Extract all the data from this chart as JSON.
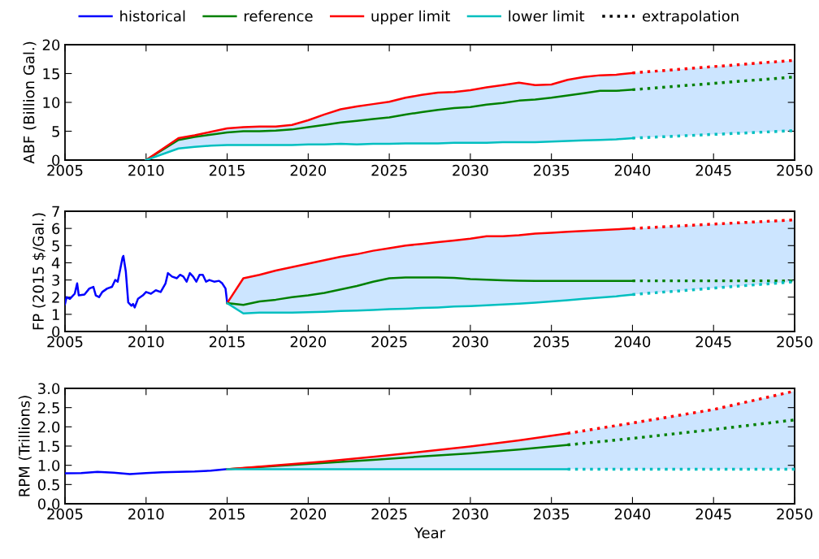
{
  "chart_data": [
    {
      "type": "line",
      "ylabel": "ABF (Billion Gal.)",
      "xlim": [
        2005,
        2050
      ],
      "xticks": [
        2005,
        2010,
        2015,
        2020,
        2025,
        2030,
        2035,
        2040,
        2045,
        2050
      ],
      "ylim": [
        0,
        20
      ],
      "yticks": [
        0,
        5,
        10,
        15,
        20
      ],
      "grid": false,
      "legend": false,
      "line_style": "solid",
      "marker": "none",
      "series": [
        {
          "color": "#008000",
          "x": [
            2010,
            2012,
            2013,
            2014,
            2015,
            2016,
            2017,
            2018,
            2019,
            2020,
            2021,
            2022,
            2023,
            2024,
            2025,
            2026,
            2027,
            2028,
            2029,
            2030,
            2031,
            2032,
            2033,
            2034,
            2035,
            2036,
            2037,
            2038,
            2039,
            2040,
            2050
          ],
          "values": [
            0,
            3.5,
            4.0,
            4.4,
            4.8,
            5.0,
            5.0,
            5.1,
            5.3,
            5.7,
            6.1,
            6.5,
            6.8,
            7.1,
            7.4,
            7.9,
            8.3,
            8.7,
            9.0,
            9.2,
            9.6,
            9.9,
            10.3,
            10.5,
            10.8,
            11.2,
            11.6,
            12.0,
            12.0,
            12.2,
            null
          ],
          "lower": [
            0,
            2.0,
            2.3,
            2.5,
            2.6,
            2.6,
            2.6,
            2.6,
            2.6,
            2.7,
            2.7,
            2.8,
            2.7,
            2.8,
            2.8,
            2.9,
            2.9,
            2.9,
            3.0,
            3.0,
            3.0,
            3.1,
            3.1,
            3.1,
            3.2,
            3.3,
            3.4,
            3.5,
            3.6,
            3.8,
            5.1
          ],
          "upper": [
            0,
            3.8,
            4.3,
            4.9,
            5.5,
            5.7,
            5.8,
            5.8,
            6.1,
            6.9,
            7.9,
            8.8,
            9.3,
            9.7,
            10.1,
            10.8,
            11.3,
            11.7,
            11.8,
            12.1,
            12.6,
            13.0,
            13.4,
            13.0,
            13.1,
            13.9,
            14.4,
            14.7,
            14.8,
            15.1,
            17.3
          ]
        },
        {
          "color": "#ff0000",
          "x": [
            2010,
            2012,
            2013,
            2014,
            2015,
            2016,
            2017,
            2018,
            2019,
            2020,
            2021,
            2022,
            2023,
            2024,
            2025,
            2026,
            2027,
            2028,
            2029,
            2030,
            2031,
            2032,
            2033,
            2034,
            2035,
            2036,
            2037,
            2038,
            2039,
            2040
          ],
          "values": [
            0,
            3.8,
            4.3,
            4.9,
            5.5,
            5.7,
            5.8,
            5.8,
            6.1,
            6.9,
            7.9,
            8.8,
            9.3,
            9.7,
            10.1,
            10.8,
            11.3,
            11.7,
            11.8,
            12.1,
            12.6,
            13.0,
            13.4,
            13.0,
            13.1,
            13.9,
            14.4,
            14.7,
            14.8,
            15.1
          ]
        },
        {
          "color": "#00bfbf",
          "x": [
            2010,
            2012,
            2013,
            2014,
            2015,
            2016,
            2017,
            2018,
            2019,
            2020,
            2021,
            2022,
            2023,
            2024,
            2025,
            2026,
            2027,
            2028,
            2029,
            2030,
            2031,
            2032,
            2033,
            2034,
            2035,
            2036,
            2037,
            2038,
            2039,
            2040
          ],
          "values": [
            0,
            2.0,
            2.3,
            2.5,
            2.6,
            2.6,
            2.6,
            2.6,
            2.6,
            2.7,
            2.7,
            2.8,
            2.7,
            2.8,
            2.8,
            2.9,
            2.9,
            2.9,
            3.0,
            3.0,
            3.0,
            3.1,
            3.1,
            3.1,
            3.2,
            3.3,
            3.4,
            3.5,
            3.6,
            3.8
          ]
        },
        {
          "color": "#ff0000",
          "line_style": "dotted",
          "x": [
            2040,
            2050
          ],
          "values": [
            15.1,
            17.3
          ]
        },
        {
          "color": "#008000",
          "line_style": "dotted",
          "x": [
            2040,
            2050
          ],
          "values": [
            12.2,
            14.4
          ]
        },
        {
          "color": "#00bfbf",
          "line_style": "dotted",
          "x": [
            2040,
            2050
          ],
          "values": [
            3.8,
            5.1
          ]
        }
      ]
    },
    {
      "type": "line",
      "ylabel": "FP (2015 $/Gal.)",
      "xlim": [
        2005,
        2050
      ],
      "xticks": [
        2005,
        2010,
        2015,
        2020,
        2025,
        2030,
        2035,
        2040,
        2045,
        2050
      ],
      "ylim": [
        0,
        7
      ],
      "yticks": [
        0,
        1,
        2,
        3,
        4,
        5,
        6,
        7
      ],
      "grid": false,
      "legend": "top",
      "line_style": "solid",
      "marker": "none",
      "series": [
        {
          "name": "historical",
          "color": "#0000ff",
          "x": [
            2005.0,
            2005.1,
            2005.3,
            2005.6,
            2005.75,
            2005.85,
            2006.2,
            2006.5,
            2006.75,
            2006.9,
            2007.1,
            2007.3,
            2007.6,
            2007.9,
            2008.1,
            2008.25,
            2008.4,
            2008.55,
            2008.6,
            2008.75,
            2008.9,
            2009.1,
            2009.2,
            2009.3,
            2009.5,
            2009.8,
            2010.0,
            2010.3,
            2010.6,
            2010.9,
            2011.2,
            2011.35,
            2011.6,
            2011.9,
            2012.1,
            2012.3,
            2012.5,
            2012.7,
            2012.9,
            2013.1,
            2013.3,
            2013.5,
            2013.7,
            2013.9,
            2014.2,
            2014.5,
            2014.7,
            2014.9,
            2015.0
          ],
          "values": [
            1.6,
            2.0,
            1.9,
            2.2,
            2.8,
            2.1,
            2.15,
            2.5,
            2.6,
            2.1,
            2.0,
            2.3,
            2.5,
            2.6,
            3.0,
            2.9,
            3.6,
            4.3,
            4.4,
            3.5,
            1.7,
            1.5,
            1.6,
            1.4,
            1.9,
            2.1,
            2.3,
            2.2,
            2.4,
            2.3,
            2.8,
            3.4,
            3.2,
            3.1,
            3.3,
            3.2,
            2.9,
            3.4,
            3.2,
            2.9,
            3.3,
            3.3,
            2.9,
            3.0,
            2.9,
            2.95,
            2.8,
            2.5,
            1.7
          ]
        },
        {
          "name": "reference",
          "color": "#008000",
          "x": [
            2015,
            2016,
            2017,
            2018,
            2019,
            2020,
            2021,
            2022,
            2023,
            2024,
            2025,
            2026,
            2027,
            2028,
            2029,
            2030,
            2031,
            2032,
            2033,
            2034,
            2035,
            2036,
            2037,
            2038,
            2039,
            2040,
            2050
          ],
          "values": [
            1.65,
            1.55,
            1.75,
            1.85,
            2.0,
            2.1,
            2.25,
            2.45,
            2.65,
            2.9,
            3.1,
            3.15,
            3.15,
            3.15,
            3.12,
            3.05,
            3.02,
            2.98,
            2.96,
            2.95,
            2.95,
            2.95,
            2.95,
            2.95,
            2.95,
            2.95,
            null
          ],
          "lower": [
            1.65,
            1.05,
            1.1,
            1.1,
            1.1,
            1.12,
            1.15,
            1.2,
            1.22,
            1.25,
            1.3,
            1.33,
            1.37,
            1.4,
            1.45,
            1.48,
            1.52,
            1.57,
            1.62,
            1.68,
            1.75,
            1.82,
            1.9,
            1.98,
            2.05,
            2.15,
            2.9
          ],
          "upper": [
            1.65,
            3.1,
            3.3,
            3.55,
            3.75,
            3.95,
            4.15,
            4.35,
            4.5,
            4.7,
            4.85,
            5.0,
            5.1,
            5.2,
            5.3,
            5.4,
            5.55,
            5.55,
            5.6,
            5.7,
            5.75,
            5.8,
            5.85,
            5.9,
            5.95,
            6.0,
            6.5
          ]
        },
        {
          "name": "upper limit",
          "color": "#ff0000",
          "x": [
            2015,
            2016,
            2017,
            2018,
            2019,
            2020,
            2021,
            2022,
            2023,
            2024,
            2025,
            2026,
            2027,
            2028,
            2029,
            2030,
            2031,
            2032,
            2033,
            2034,
            2035,
            2036,
            2037,
            2038,
            2039,
            2040
          ],
          "values": [
            1.65,
            3.1,
            3.3,
            3.55,
            3.75,
            3.95,
            4.15,
            4.35,
            4.5,
            4.7,
            4.85,
            5.0,
            5.1,
            5.2,
            5.3,
            5.4,
            5.55,
            5.55,
            5.6,
            5.7,
            5.75,
            5.8,
            5.85,
            5.9,
            5.95,
            6.0
          ]
        },
        {
          "name": "lower limit",
          "color": "#00bfbf",
          "x": [
            2015,
            2016,
            2017,
            2018,
            2019,
            2020,
            2021,
            2022,
            2023,
            2024,
            2025,
            2026,
            2027,
            2028,
            2029,
            2030,
            2031,
            2032,
            2033,
            2034,
            2035,
            2036,
            2037,
            2038,
            2039,
            2040
          ],
          "values": [
            1.65,
            1.05,
            1.1,
            1.1,
            1.1,
            1.12,
            1.15,
            1.2,
            1.22,
            1.25,
            1.3,
            1.33,
            1.37,
            1.4,
            1.45,
            1.48,
            1.52,
            1.57,
            1.62,
            1.68,
            1.75,
            1.82,
            1.9,
            1.98,
            2.05,
            2.15
          ]
        },
        {
          "name": "extrapolation",
          "color": "#000000",
          "line_style": "dotted"
        },
        {
          "color": "#ff0000",
          "line_style": "dotted",
          "x": [
            2040,
            2050
          ],
          "values": [
            6.0,
            6.5
          ]
        },
        {
          "color": "#008000",
          "line_style": "dotted",
          "x": [
            2040,
            2050
          ],
          "values": [
            2.95,
            2.95
          ]
        },
        {
          "color": "#00bfbf",
          "line_style": "dotted",
          "x": [
            2040,
            2050
          ],
          "values": [
            2.15,
            2.9
          ]
        }
      ]
    },
    {
      "type": "line",
      "ylabel": "RPM (Trillions)",
      "xlabel": "Year",
      "xlim": [
        2005,
        2050
      ],
      "xticks": [
        2005,
        2010,
        2015,
        2020,
        2025,
        2030,
        2035,
        2040,
        2045,
        2050
      ],
      "ylim": [
        0,
        3
      ],
      "yticks": [
        {
          "value": 0,
          "label": "0.0"
        },
        0.5,
        {
          "value": 1,
          "label": "1.0"
        },
        1.5,
        {
          "value": 2,
          "label": "2.0"
        },
        2.5,
        {
          "value": 3,
          "label": "3.0"
        }
      ],
      "grid": false,
      "legend": false,
      "line_style": "solid",
      "marker": "none",
      "series": [
        {
          "color": "#0000ff",
          "x": [
            2005,
            2006,
            2007,
            2008,
            2009,
            2010,
            2011,
            2012,
            2013,
            2014,
            2015
          ],
          "values": [
            0.79,
            0.8,
            0.83,
            0.81,
            0.77,
            0.8,
            0.82,
            0.83,
            0.84,
            0.86,
            0.9
          ]
        },
        {
          "color": "#008000",
          "x": [
            2015,
            2018,
            2021,
            2024,
            2027,
            2030,
            2033,
            2036,
            2040,
            2045,
            2050
          ],
          "values": [
            0.9,
            0.98,
            1.06,
            1.14,
            1.23,
            1.31,
            1.41,
            1.53,
            null,
            null,
            null
          ],
          "lower": [
            0.9,
            0.9,
            0.9,
            0.9,
            0.9,
            0.9,
            0.9,
            0.9,
            0.9,
            0.9,
            0.9
          ],
          "upper": [
            0.9,
            1.0,
            1.1,
            1.22,
            1.35,
            1.49,
            1.65,
            1.83,
            2.1,
            2.45,
            2.93
          ]
        },
        {
          "color": "#ff0000",
          "x": [
            2015,
            2018,
            2021,
            2024,
            2027,
            2030,
            2033,
            2036
          ],
          "values": [
            0.9,
            1.0,
            1.1,
            1.22,
            1.35,
            1.49,
            1.65,
            1.83
          ]
        },
        {
          "color": "#00bfbf",
          "x": [
            2015,
            2036
          ],
          "values": [
            0.9,
            0.9
          ]
        },
        {
          "color": "#ff0000",
          "line_style": "dotted",
          "x": [
            2036,
            2040,
            2045,
            2050
          ],
          "values": [
            1.83,
            2.1,
            2.45,
            2.93
          ]
        },
        {
          "color": "#008000",
          "line_style": "dotted",
          "x": [
            2036,
            2040,
            2045,
            2050
          ],
          "values": [
            1.53,
            1.7,
            1.93,
            2.18
          ]
        },
        {
          "color": "#00bfbf",
          "line_style": "dotted",
          "x": [
            2036,
            2050
          ],
          "values": [
            0.9,
            0.9
          ]
        }
      ]
    }
  ]
}
